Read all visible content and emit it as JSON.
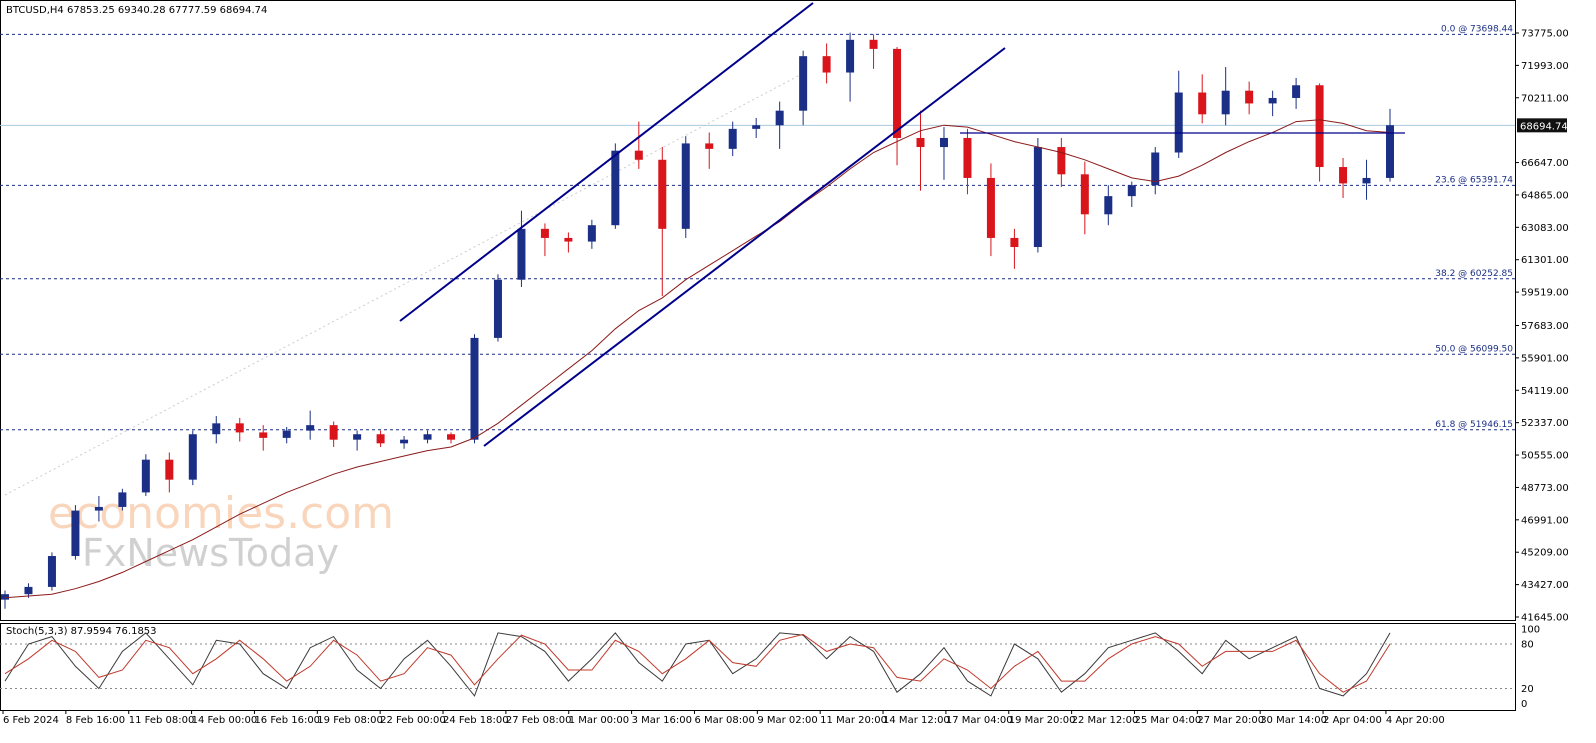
{
  "chart_data": {
    "type": "candlestick",
    "title": "BTCUSD,H4  67853.25 69340.28 67777.59 68694.74",
    "up_color": "#1b2f86",
    "down_color": "#d9141b",
    "ylim": [
      41480,
      75590
    ],
    "yticks": [
      {
        "value": 73775,
        "label": "73775.00"
      },
      {
        "value": 71993,
        "label": "71993.00"
      },
      {
        "value": 70211,
        "label": "70211.00"
      },
      {
        "value": 66647,
        "label": "66647.00"
      },
      {
        "value": 64865,
        "label": "64865.00"
      },
      {
        "value": 63083,
        "label": "63083.00"
      },
      {
        "value": 61301,
        "label": "61301.00"
      },
      {
        "value": 59519,
        "label": "59519.00"
      },
      {
        "value": 57683,
        "label": "57683.00"
      },
      {
        "value": 55901,
        "label": "55901.00"
      },
      {
        "value": 54119,
        "label": "54119.00"
      },
      {
        "value": 52337,
        "label": "52337.00"
      },
      {
        "value": 50555,
        "label": "50555.00"
      },
      {
        "value": 48773,
        "label": "48773.00"
      },
      {
        "value": 46991,
        "label": "46991.00"
      },
      {
        "value": 45209,
        "label": "45209.00"
      },
      {
        "value": 43427,
        "label": "43427.00"
      },
      {
        "value": 41645,
        "label": "41645.00"
      }
    ],
    "xtick_labels": [
      "6 Feb 2024",
      "8 Feb 16:00",
      "11 Feb 08:00",
      "14 Feb 00:00",
      "16 Feb 16:00",
      "19 Feb 08:00",
      "22 Feb 00:00",
      "24 Feb 18:00",
      "27 Feb 08:00",
      "1 Mar 00:00",
      "3 Mar 16:00",
      "6 Mar 08:00",
      "9 Mar 02:00",
      "11 Mar 20:00",
      "14 Mar 12:00",
      "17 Mar 04:00",
      "19 Mar 20:00",
      "22 Mar 12:00",
      "25 Mar 04:00",
      "27 Mar 20:00",
      "30 Mar 14:00",
      "2 Apr 04:00",
      "4 Apr 20:00"
    ],
    "levels": [
      {
        "value": 73698.44,
        "label": "0.0 @ 73698.44"
      },
      {
        "value": 65391.74,
        "label": "23.6 @ 65391.74"
      },
      {
        "value": 60252.85,
        "label": "38.2 @ 60252.85"
      },
      {
        "value": 56099.5,
        "label": "50.0 @ 56099.50"
      },
      {
        "value": 51946.15,
        "label": "61.8 @ 51946.15"
      }
    ],
    "level_color": "#1b2f86",
    "last_price": 68694.74,
    "ohlc": [
      [
        42600,
        43100,
        42100,
        42900
      ],
      [
        42900,
        43500,
        42700,
        43300
      ],
      [
        43300,
        45200,
        43100,
        45000
      ],
      [
        45000,
        47800,
        44800,
        47500
      ],
      [
        47500,
        48300,
        46900,
        47700
      ],
      [
        47700,
        48700,
        47500,
        48500
      ],
      [
        48500,
        50600,
        48300,
        50300
      ],
      [
        50300,
        50700,
        48500,
        49200
      ],
      [
        49200,
        51900,
        48900,
        51700
      ],
      [
        51700,
        52700,
        51200,
        52300
      ],
      [
        52300,
        52600,
        51300,
        51800
      ],
      [
        51800,
        52200,
        50800,
        51500
      ],
      [
        51500,
        52100,
        51200,
        51900
      ],
      [
        51900,
        53000,
        51400,
        52200
      ],
      [
        52200,
        52400,
        51000,
        51400
      ],
      [
        51400,
        51900,
        50800,
        51700
      ],
      [
        51700,
        51900,
        51000,
        51200
      ],
      [
        51200,
        51600,
        50900,
        51400
      ],
      [
        51400,
        51900,
        51200,
        51700
      ],
      [
        51700,
        51800,
        51200,
        51400
      ],
      [
        51400,
        57200,
        51200,
        57000
      ],
      [
        57000,
        60500,
        56800,
        60200
      ],
      [
        60200,
        64000,
        59800,
        63000
      ],
      [
        63000,
        63300,
        61500,
        62500
      ],
      [
        62500,
        62800,
        61700,
        62300
      ],
      [
        62300,
        63500,
        61900,
        63200
      ],
      [
        63200,
        67700,
        63000,
        67300
      ],
      [
        67300,
        68900,
        66300,
        66800
      ],
      [
        66800,
        67500,
        59300,
        63000
      ],
      [
        63000,
        68100,
        62500,
        67700
      ],
      [
        67700,
        68300,
        66300,
        67400
      ],
      [
        67400,
        68900,
        67000,
        68500
      ],
      [
        68500,
        69100,
        68000,
        68700
      ],
      [
        68700,
        70000,
        67400,
        69500
      ],
      [
        69500,
        72800,
        68700,
        72500
      ],
      [
        72500,
        73200,
        71000,
        71600
      ],
      [
        71600,
        73800,
        70000,
        73400
      ],
      [
        73400,
        73700,
        71800,
        72900
      ],
      [
        72900,
        73000,
        66500,
        68000
      ],
      [
        68000,
        69500,
        65100,
        67500
      ],
      [
        67500,
        68600,
        65700,
        68000
      ],
      [
        68000,
        68500,
        64900,
        65800
      ],
      [
        65800,
        66600,
        61500,
        62500
      ],
      [
        62500,
        63000,
        60800,
        62000
      ],
      [
        62000,
        68000,
        61700,
        67500
      ],
      [
        67500,
        68000,
        65300,
        66000
      ],
      [
        66000,
        66700,
        62700,
        63800
      ],
      [
        63800,
        65400,
        63200,
        64800
      ],
      [
        64800,
        65600,
        64200,
        65400
      ],
      [
        65400,
        67500,
        64900,
        67200
      ],
      [
        67200,
        71700,
        66900,
        70500
      ],
      [
        70500,
        71500,
        68800,
        69300
      ],
      [
        69300,
        71900,
        68700,
        70600
      ],
      [
        70600,
        71100,
        69300,
        69900
      ],
      [
        69900,
        70600,
        69200,
        70200
      ],
      [
        70200,
        71300,
        69600,
        70900
      ],
      [
        70900,
        71000,
        65600,
        66400
      ],
      [
        66400,
        66900,
        64700,
        65500
      ],
      [
        65500,
        66800,
        64600,
        65800
      ],
      [
        65800,
        69600,
        65600,
        68700
      ]
    ],
    "ma_color": "#8b1a1a",
    "ma_values": [
      42700,
      42800,
      42900,
      43200,
      43600,
      44100,
      44700,
      45300,
      45900,
      46600,
      47300,
      47900,
      48500,
      49000,
      49500,
      49900,
      50200,
      50500,
      50800,
      51000,
      51500,
      52300,
      53300,
      54300,
      55300,
      56300,
      57500,
      58500,
      59200,
      60200,
      61000,
      61800,
      62600,
      63400,
      64400,
      65300,
      66300,
      67200,
      67800,
      68400,
      68700,
      68600,
      68200,
      67800,
      67500,
      67200,
      66800,
      66300,
      65800,
      65600,
      65900,
      66500,
      67200,
      67800,
      68300,
      68900,
      69000,
      68800,
      68400,
      68300
    ],
    "watermark": [
      "economies.com",
      "FxNewsToday"
    ],
    "stoch": {
      "label": "Stoch(5,3,3) 87.9594 76.1853",
      "ylim": [
        -9,
        107
      ],
      "yticks": [
        0,
        20,
        80,
        100
      ],
      "k_color": "#3a3a3a",
      "d_color": "#c0392b",
      "k": [
        30,
        80,
        90,
        50,
        20,
        70,
        95,
        60,
        25,
        85,
        80,
        40,
        20,
        75,
        90,
        45,
        20,
        60,
        85,
        50,
        10,
        95,
        90,
        70,
        30,
        60,
        95,
        55,
        30,
        80,
        85,
        40,
        60,
        95,
        92,
        60,
        90,
        70,
        15,
        40,
        75,
        30,
        10,
        80,
        60,
        15,
        40,
        75,
        85,
        95,
        70,
        40,
        85,
        60,
        75,
        90,
        20,
        10,
        40,
        95
      ],
      "d": [
        40,
        60,
        85,
        70,
        35,
        45,
        85,
        75,
        40,
        60,
        85,
        60,
        30,
        50,
        85,
        65,
        30,
        40,
        75,
        65,
        25,
        60,
        92,
        80,
        45,
        45,
        85,
        70,
        40,
        60,
        85,
        55,
        50,
        85,
        93,
        70,
        80,
        75,
        35,
        30,
        60,
        45,
        20,
        50,
        70,
        30,
        30,
        60,
        80,
        90,
        80,
        50,
        70,
        70,
        70,
        85,
        40,
        15,
        30,
        80
      ]
    }
  }
}
